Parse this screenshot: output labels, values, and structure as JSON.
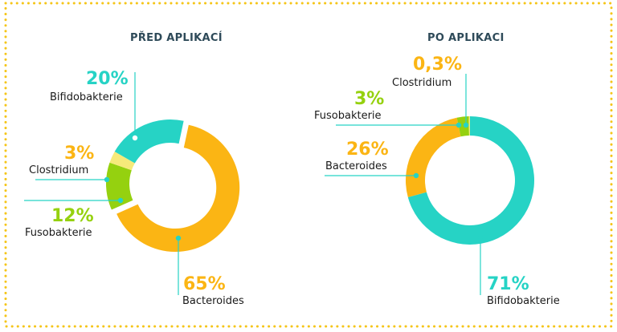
{
  "colors": {
    "bifidobakterie": "#26d3c5",
    "bacteroides": "#fbb514",
    "fusobakterie": "#95d10f",
    "clostridium": "#f6ea7a",
    "title": "#2e4a59",
    "border": "#f5c518"
  },
  "chart_data": [
    {
      "type": "pie",
      "title": "PŘED APLIKACÍ",
      "slices": [
        {
          "name": "Bacteroides",
          "value": 65,
          "label": "65%",
          "color": "#fbb514"
        },
        {
          "name": "Fusobakterie",
          "value": 12,
          "label": "12%",
          "color": "#95d10f"
        },
        {
          "name": "Clostridium",
          "value": 3,
          "label": "3%",
          "color": "#f6ea7a"
        },
        {
          "name": "Bifidobakterie",
          "value": 20,
          "label": "20%",
          "color": "#26d3c5"
        }
      ]
    },
    {
      "type": "pie",
      "title": "PO APLIKACI",
      "slices": [
        {
          "name": "Bifidobakterie",
          "value": 71,
          "label": "71%",
          "color": "#26d3c5"
        },
        {
          "name": "Bacteroides",
          "value": 26,
          "label": "26%",
          "color": "#fbb514"
        },
        {
          "name": "Fusobakterie",
          "value": 3,
          "label": "3%",
          "color": "#95d10f"
        },
        {
          "name": "Clostridium",
          "value": 0.3,
          "label": "0,3%",
          "color": "#f6ea7a"
        }
      ]
    }
  ]
}
